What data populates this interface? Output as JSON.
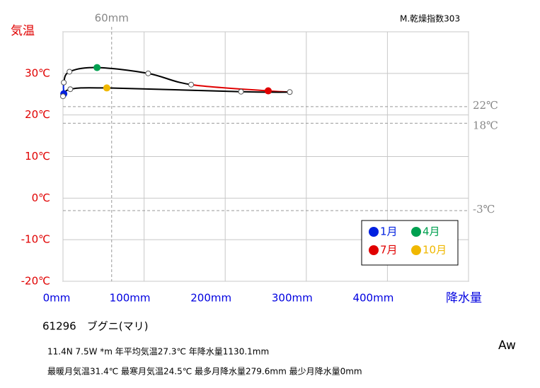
{
  "chart_data": {
    "type": "climograph",
    "title": "61296　ブグニ(マリ)",
    "info_lines": [
      "11.4N  7.5W *m  年平均気温27.3℃ 年降水量1130.1mm",
      "最暖月気温31.4℃ 最寒月気温24.5℃ 最多月降水量279.6mm 最少月降水量0mm"
    ],
    "index_label": "M.乾燥指数303",
    "climate_class": "Aw",
    "y_label": "気温",
    "x_label": "降水量",
    "y_label_color": "#e00000",
    "x_label_color": "#0000e0",
    "x": [
      1,
      1,
      8,
      42,
      105,
      158,
      253,
      279.6,
      219.5,
      54,
      9,
      0
    ],
    "values": [
      25.1,
      27.8,
      30.4,
      31.4,
      30.0,
      27.3,
      25.8,
      25.5,
      25.6,
      26.5,
      26.2,
      24.5
    ],
    "point_colors": [
      "#0020e0",
      null,
      null,
      "#00a050",
      null,
      null,
      "#e00000",
      null,
      null,
      "#f0b800",
      null,
      null
    ],
    "segment_colors": [
      "#0020e0",
      "#000000",
      "#000000",
      "#000000",
      "#000000",
      "#e00000",
      "#e00000",
      "#000000",
      "#000000",
      "#000000",
      "#000000",
      "#0020e0"
    ],
    "legend": [
      {
        "name": "1月",
        "color": "#0020e0"
      },
      {
        "name": "4月",
        "color": "#00a050"
      },
      {
        "name": "7月",
        "color": "#e00000"
      },
      {
        "name": "10月",
        "color": "#f0b800"
      }
    ],
    "xlim": [
      0,
      500
    ],
    "ylim": [
      -20,
      40
    ],
    "xticks": [
      {
        "value": 0,
        "label": "0mm"
      },
      {
        "value": 100,
        "label": "100mm"
      },
      {
        "value": 200,
        "label": "200mm"
      },
      {
        "value": 300,
        "label": "300mm"
      },
      {
        "value": 400,
        "label": "400mm"
      },
      500
    ],
    "yticks": [
      {
        "value": -20,
        "label": "-20℃"
      },
      {
        "value": -10,
        "label": "-10℃"
      },
      {
        "value": 0,
        "label": "0℃"
      },
      {
        "value": 10,
        "label": "10℃"
      },
      {
        "value": 20,
        "label": "20℃"
      },
      {
        "value": 30,
        "label": "30℃"
      },
      40
    ],
    "h_refs": [
      {
        "value": 22,
        "label": "22℃"
      },
      {
        "value": 18,
        "label": "18℃"
      },
      {
        "value": -3,
        "label": "-3℃"
      }
    ],
    "v_ref": {
      "value": 60,
      "label": "60mm"
    },
    "grid": true
  }
}
